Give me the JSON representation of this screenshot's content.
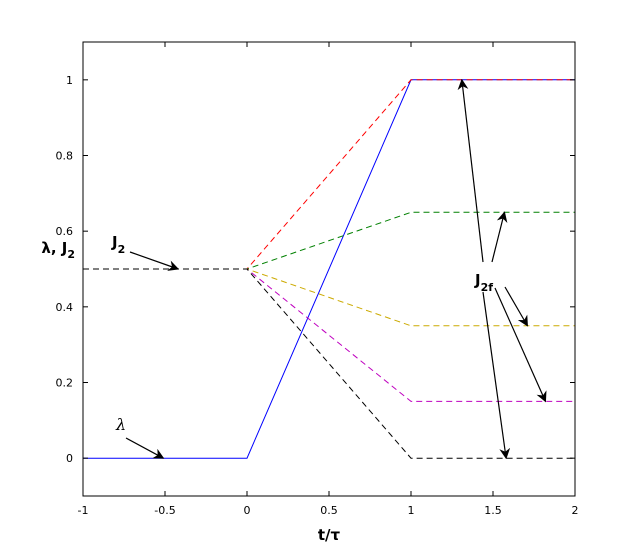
{
  "chart_data": {
    "type": "line",
    "xlabel": "t/τ",
    "ylabel": "λ, J2",
    "xlim": [
      -1,
      2
    ],
    "ylim": [
      -0.1,
      1.1
    ],
    "xticks": [
      "-1",
      "-0.5",
      "0",
      "0.5",
      "1",
      "1.5",
      "2"
    ],
    "yticks": [
      "0",
      "0.2",
      "0.4",
      "0.6",
      "0.8",
      "1"
    ],
    "grid": false,
    "legend": "none",
    "series": [
      {
        "name": "λ",
        "color": "#0000ff",
        "dash": "solid",
        "x": [
          -1,
          0,
          1,
          2
        ],
        "y": [
          0,
          0,
          1,
          1
        ]
      },
      {
        "color": "#ff0000",
        "dash": "dashed",
        "x": [
          -1,
          0,
          1,
          2
        ],
        "y": [
          0.5,
          0.5,
          1.0,
          1.0
        ]
      },
      {
        "color": "#008000",
        "dash": "dashed",
        "x": [
          -1,
          0,
          1,
          2
        ],
        "y": [
          0.5,
          0.5,
          0.65,
          0.65
        ]
      },
      {
        "color": "#ccaa00",
        "dash": "dashed",
        "x": [
          -1,
          0,
          1,
          2
        ],
        "y": [
          0.5,
          0.5,
          0.35,
          0.35
        ]
      },
      {
        "color": "#bf00bf",
        "dash": "dashed",
        "x": [
          -1,
          0,
          1,
          2
        ],
        "y": [
          0.5,
          0.5,
          0.15,
          0.15
        ]
      },
      {
        "color": "#000000",
        "dash": "dashed",
        "x": [
          -1,
          0,
          1,
          2
        ],
        "y": [
          0.5,
          0.5,
          0.0,
          0.0
        ]
      }
    ],
    "annotations": [
      {
        "id": "J2",
        "main": "J",
        "sub": "2",
        "arrows": [
          {
            "tip": [
              -0.42,
              0.5
            ]
          }
        ]
      },
      {
        "id": "J2f",
        "main": "J",
        "sub": "2f",
        "arrows": [
          {
            "tip": [
              1.31,
              1.0
            ]
          },
          {
            "tip": [
              1.57,
              0.65
            ]
          },
          {
            "tip": [
              1.71,
              0.35
            ]
          },
          {
            "tip": [
              1.82,
              0.15
            ]
          },
          {
            "tip": [
              1.58,
              0.0
            ]
          }
        ]
      },
      {
        "id": "lambda",
        "main": "λ",
        "arrows": [
          {
            "tip": [
              -0.51,
              0.0
            ]
          }
        ]
      }
    ]
  }
}
